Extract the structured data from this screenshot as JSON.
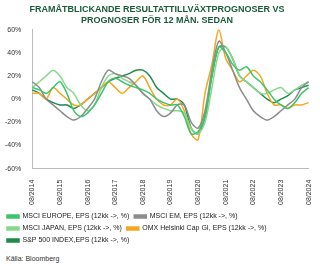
{
  "chart_data": {
    "type": "line",
    "title": [
      "FRAMÅTBLICKANDE RESULTATTILLVÄXTPROGNOSER VS",
      "PROGNOSER FÖR 12 MÅN. SEDAN"
    ],
    "source": "Källa: Bloomberg",
    "categories": [
      "08/2014",
      null,
      null,
      null,
      "08/2015",
      null,
      null,
      null,
      "08/2016",
      null,
      null,
      null,
      "08/2017",
      null,
      null,
      null,
      "08/2018",
      null,
      null,
      null,
      "08/2019",
      null,
      null,
      null,
      "08/2020",
      null,
      null,
      null,
      "08/2021",
      null,
      null,
      null,
      "08/2022",
      null,
      null,
      null,
      "08/2023",
      null,
      null,
      null,
      "08/2024"
    ],
    "series": [
      {
        "name": "MSCI EUROPE, EPS (12kk ->, %)",
        "color": "#3cc46a",
        "values": [
          10,
          8,
          5,
          10,
          15,
          5,
          -10,
          -15,
          -12,
          -5,
          5,
          15,
          18,
          15,
          12,
          10,
          8,
          5,
          0,
          -3,
          -5,
          -5,
          -15,
          -30,
          -28,
          -15,
          20,
          45,
          40,
          30,
          25,
          28,
          20,
          15,
          8,
          0,
          -5,
          -8,
          -3,
          5,
          10
        ]
      },
      {
        "name": "MSCI EM, EPS (12kk ->, %)",
        "color": "#8c8c8c",
        "values": [
          15,
          10,
          0,
          -5,
          -10,
          -15,
          -18,
          -15,
          -8,
          0,
          15,
          25,
          22,
          20,
          18,
          12,
          5,
          0,
          -10,
          -15,
          -12,
          -5,
          -5,
          -20,
          -25,
          -10,
          25,
          50,
          40,
          25,
          10,
          0,
          -10,
          -15,
          -18,
          -15,
          -10,
          -5,
          0,
          10,
          15
        ]
      },
      {
        "name": "MSCI JAPAN, EPS (12kk ->, %)",
        "color": "#86d98a",
        "values": [
          10,
          15,
          20,
          25,
          20,
          10,
          5,
          -5,
          -10,
          -5,
          10,
          20,
          22,
          18,
          15,
          12,
          5,
          0,
          -5,
          -8,
          -10,
          -10,
          -12,
          -25,
          -30,
          -20,
          10,
          40,
          45,
          35,
          20,
          15,
          10,
          5,
          5,
          8,
          10,
          5,
          8,
          12,
          15
        ]
      },
      {
        "name": "OMX Helsinki Cap GI, EPS (12kk ->, %)",
        "color": "#f5a623",
        "values": [
          5,
          5,
          0,
          10,
          5,
          0,
          -5,
          -5,
          0,
          5,
          10,
          15,
          10,
          5,
          10,
          15,
          20,
          10,
          0,
          -5,
          -5,
          0,
          -10,
          -30,
          -35,
          5,
          30,
          60,
          35,
          25,
          15,
          20,
          25,
          20,
          5,
          -5,
          -5,
          -8,
          -5,
          -5,
          -3
        ]
      },
      {
        "name": "S&P 500 INDEX,EPS (12kk ->, %)",
        "color": "#1e8a4c",
        "values": [
          8,
          5,
          0,
          -3,
          -5,
          -5,
          -8,
          -5,
          0,
          5,
          10,
          15,
          18,
          20,
          22,
          25,
          25,
          20,
          10,
          5,
          0,
          0,
          -5,
          -25,
          -30,
          -15,
          20,
          45,
          45,
          35,
          20,
          15,
          10,
          5,
          0,
          -3,
          0,
          3,
          8,
          10,
          12
        ]
      }
    ],
    "ylim": [
      -60,
      60
    ],
    "yticks": [
      {
        "value": -60,
        "label": "-60%"
      },
      {
        "value": -40,
        "label": "-40%"
      },
      {
        "value": -20,
        "label": "-20%"
      },
      {
        "value": 0,
        "label": "0%"
      },
      {
        "value": 20,
        "label": "20%"
      },
      {
        "value": 40,
        "label": "40%"
      },
      {
        "value": 60,
        "label": "60%"
      }
    ],
    "grid": false,
    "legend": "bottom"
  }
}
